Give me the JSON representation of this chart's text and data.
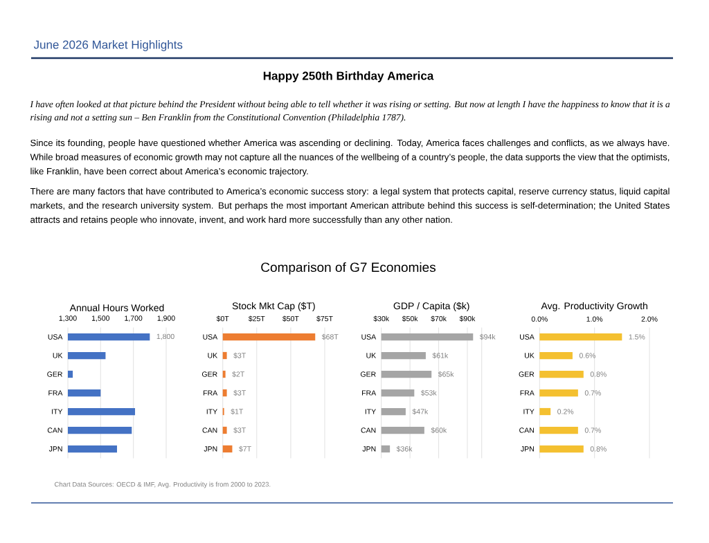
{
  "chart_data": [
    {
      "type": "other",
      "title": "Happy 250th Birthday America",
      "annotations": [
        "June 2026 Market Highlights",
        "I have often looked at that picture behind the President without being able to tell whether it was rising or setting. But now at length I have the happiness to know that it is a rising and not a setting sun – Ben Franklin from the Constitutional Convention (Philadelphia 1787).",
        "Since its founding, people have questioned whether America was ascending or declining. Today, America faces challenges and conflicts, as we always have. While broad measures of economic growth may not capture all the nuances of the wellbeing of a country’s people, the data supports the view that the optimists, like Franklin, have been correct about America’s economic trajectory.",
        "There are many factors that have contributed to America’s economic success story: a legal system that protects capital, reserve currency status, liquid capital markets, and the research university system. But perhaps the most important American attribute behind this success is self-determination; the United States attracts and retains people who innovate, invent, and work hard more successfully than any other nation.",
        "Comparison of G7 Economies",
        "Chart Data Sources: OECD & IMF, Avg. Productivity is from 2000 to 2023."
      ]
    },
    {
      "type": "bar",
      "orientation": "horizontal",
      "title": "Annual Hours Worked",
      "categories": [
        "USA",
        "UK",
        "GER",
        "FRA",
        "ITY",
        "CAN",
        "JPN"
      ],
      "values": [
        1800,
        1530,
        1330,
        1500,
        1710,
        1690,
        1600
      ],
      "color": "#4472c4",
      "xlim": [
        1300,
        1900
      ],
      "xticks": [
        {
          "value": 1300,
          "label": "1,300"
        },
        {
          "value": 1500,
          "label": "1,500"
        },
        {
          "value": 1700,
          "label": "1,700"
        },
        {
          "value": 1900,
          "label": "1,900"
        }
      ],
      "grid": "x",
      "value_labels": [
        "1,800",
        null,
        null,
        null,
        null,
        null,
        null
      ]
    },
    {
      "type": "bar",
      "orientation": "horizontal",
      "title": "Stock Mkt Cap ($T)",
      "categories": [
        "USA",
        "UK",
        "GER",
        "FRA",
        "ITY",
        "CAN",
        "JPN"
      ],
      "values": [
        68,
        3,
        2,
        3,
        1,
        3,
        7
      ],
      "color": "#ed7d31",
      "xlim": [
        0,
        75
      ],
      "xticks": [
        {
          "value": 0,
          "label": "$0T"
        },
        {
          "value": 25,
          "label": "$25T"
        },
        {
          "value": 50,
          "label": "$50T"
        },
        {
          "value": 75,
          "label": "$75T"
        }
      ],
      "grid": "x",
      "value_labels": [
        "$68T",
        "$3T",
        "$2T",
        "$3T",
        "$1T",
        "$3T",
        "$7T"
      ]
    },
    {
      "type": "bar",
      "orientation": "horizontal",
      "title": "GDP / Capita ($k)",
      "categories": [
        "USA",
        "UK",
        "GER",
        "FRA",
        "ITY",
        "CAN",
        "JPN"
      ],
      "values": [
        94,
        61,
        65,
        53,
        47,
        60,
        36
      ],
      "color": "#a5a5a5",
      "xlim": [
        30,
        100
      ],
      "xticks": [
        {
          "value": 30,
          "label": "$30k"
        },
        {
          "value": 50,
          "label": "$50k"
        },
        {
          "value": 70,
          "label": "$70k"
        },
        {
          "value": 90,
          "label": "$90k"
        },
        {
          "value": 100,
          "label": null
        }
      ],
      "grid": "x",
      "value_labels": [
        "$94k",
        "$61k",
        "$65k",
        "$53k",
        "$47k",
        "$60k",
        "$36k"
      ]
    },
    {
      "type": "bar",
      "orientation": "horizontal",
      "title": "Avg. Productivity Growth",
      "categories": [
        "USA",
        "UK",
        "GER",
        "FRA",
        "ITY",
        "CAN",
        "JPN"
      ],
      "values": [
        1.5,
        0.6,
        0.8,
        0.7,
        0.2,
        0.7,
        0.8
      ],
      "color": "#f4c030",
      "xlim": [
        0,
        2
      ],
      "xticks": [
        {
          "value": 0,
          "label": "0.0%"
        },
        {
          "value": 1,
          "label": "1.0%"
        },
        {
          "value": 2,
          "label": "2.0%"
        }
      ],
      "grid": "x",
      "value_labels": [
        "1.5%",
        "0.6%",
        "0.8%",
        "0.7%",
        "0.2%",
        "0.7%",
        "0.8%"
      ]
    }
  ]
}
